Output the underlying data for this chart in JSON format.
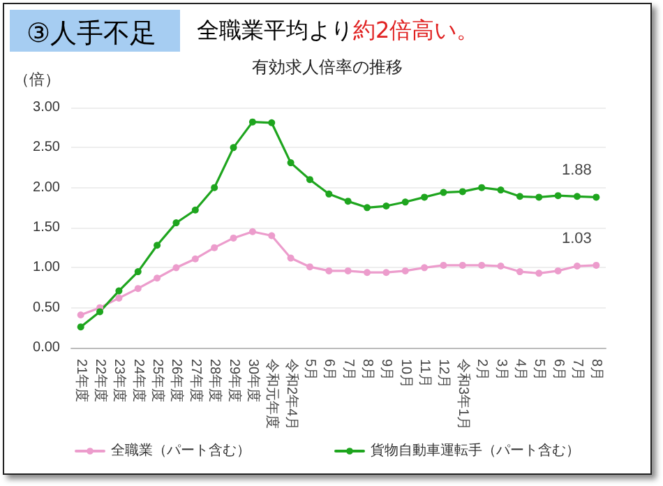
{
  "chart_data": {
    "type": "line",
    "title": "有効求人倍率の推移",
    "ylabel": "（倍）",
    "annotations": [
      "③人手不足",
      "全職業平均より",
      "約2倍高い。"
    ],
    "categories": [
      "21年度",
      "22年度",
      "23年度",
      "24年度",
      "25年度",
      "26年度",
      "27年度",
      "28年度",
      "29年度",
      "30年度",
      "令和元年度",
      "令和2年4月",
      "5月",
      "6月",
      "7月",
      "8月",
      "9月",
      "10月",
      "11月",
      "12月",
      "令和3年1月",
      "2月",
      "3月",
      "4月",
      "5月",
      "6月",
      "7月",
      "8月"
    ],
    "series": [
      {
        "name": "全職業（パート含む）",
        "color": "#ec9ccc",
        "values": [
          0.41,
          0.5,
          0.62,
          0.74,
          0.87,
          1.0,
          1.11,
          1.25,
          1.37,
          1.45,
          1.4,
          1.12,
          1.01,
          0.96,
          0.96,
          0.94,
          0.94,
          0.96,
          1.0,
          1.03,
          1.03,
          1.03,
          1.02,
          0.95,
          0.93,
          0.96,
          1.02,
          1.03
        ],
        "value_labels": [
          null,
          null,
          null,
          null,
          null,
          null,
          null,
          null,
          null,
          null,
          null,
          null,
          null,
          null,
          null,
          null,
          null,
          null,
          null,
          null,
          null,
          null,
          null,
          null,
          null,
          null,
          null,
          "1.03"
        ]
      },
      {
        "name": "貨物自動車運転手（パート含む）",
        "color": "#1ea51e",
        "values": [
          0.26,
          0.45,
          0.71,
          0.95,
          1.28,
          1.56,
          1.72,
          2.0,
          2.5,
          2.82,
          2.81,
          2.31,
          2.1,
          1.92,
          1.83,
          1.75,
          1.77,
          1.82,
          1.88,
          1.94,
          1.95,
          2.0,
          1.97,
          1.89,
          1.88,
          1.9,
          1.89,
          1.88
        ],
        "value_labels": [
          null,
          null,
          null,
          null,
          null,
          null,
          null,
          null,
          null,
          null,
          null,
          null,
          null,
          null,
          null,
          null,
          null,
          null,
          null,
          null,
          null,
          null,
          null,
          null,
          null,
          null,
          null,
          "1.88"
        ]
      }
    ],
    "ylim": [
      0,
      3
    ],
    "yticks": [
      {
        "value": 0,
        "label": "0.00"
      },
      {
        "value": 0.5,
        "label": "0.50"
      },
      {
        "value": 1,
        "label": "1.00"
      },
      {
        "value": 1.5,
        "label": "1.50"
      },
      {
        "value": 2,
        "label": "2.00"
      },
      {
        "value": 2.5,
        "label": "2.50"
      },
      {
        "value": 3,
        "label": "3.00"
      }
    ],
    "grid": "y",
    "legend": "bottom",
    "marker": "circle",
    "line_style": "solid"
  }
}
